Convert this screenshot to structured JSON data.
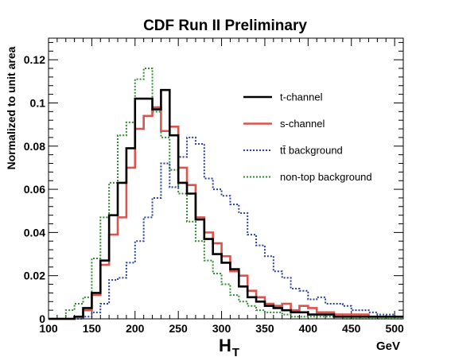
{
  "chart_data": {
    "type": "line",
    "style": "step-histogram",
    "title": "CDF Run II Preliminary",
    "xlabel": "H",
    "xlabel_subscript": "T",
    "xunit": "GeV",
    "ylabel": "Normalized to unit area",
    "xlim": [
      100,
      510
    ],
    "ylim": [
      0,
      0.13
    ],
    "xticks": [
      100,
      150,
      200,
      250,
      300,
      350,
      400,
      450,
      500
    ],
    "yticks": [
      0,
      0.02,
      0.04,
      0.06,
      0.08,
      0.1,
      0.12
    ],
    "ytick_labels": [
      "0",
      "0.02",
      "0.04",
      "0.06",
      "0.08",
      "0.1",
      "0.12"
    ],
    "bin_width": 10,
    "bin_edges_start": 100,
    "legend_position": "right",
    "series": [
      {
        "name": "t-channel",
        "color": "#000000",
        "dash": "solid",
        "values": [
          0,
          0,
          0,
          0.001,
          0.005,
          0.012,
          0.027,
          0.048,
          0.063,
          0.079,
          0.102,
          0.102,
          0.097,
          0.106,
          0.085,
          0.063,
          0.058,
          0.046,
          0.037,
          0.03,
          0.026,
          0.023,
          0.015,
          0.01,
          0.008,
          0.006,
          0.005,
          0.004,
          0.003,
          0.003,
          0.002,
          0.002,
          0.002,
          0.001,
          0.001,
          0.001,
          0.001,
          0.001,
          0.001,
          0.001,
          0.001
        ]
      },
      {
        "name": "s-channel",
        "color": "#d9534f",
        "dash": "solid",
        "values": [
          0,
          0,
          0,
          0.001,
          0.004,
          0.011,
          0.025,
          0.039,
          0.047,
          0.07,
          0.088,
          0.094,
          0.098,
          0.087,
          0.089,
          0.07,
          0.062,
          0.047,
          0.04,
          0.035,
          0.029,
          0.022,
          0.02,
          0.013,
          0.01,
          0.007,
          0.006,
          0.007,
          0.004,
          0.006,
          0.005,
          0.003,
          0.003,
          0.002,
          0.002,
          0.002,
          0.002,
          0.001,
          0.001,
          0.001,
          0.001
        ]
      },
      {
        "name": "tt̄ background",
        "color": "#2a3f9e",
        "dash": "dotted",
        "values": [
          0,
          0,
          0,
          0,
          0.001,
          0.003,
          0.007,
          0.018,
          0.019,
          0.026,
          0.036,
          0.047,
          0.056,
          0.072,
          0.061,
          0.075,
          0.084,
          0.081,
          0.065,
          0.06,
          0.057,
          0.053,
          0.049,
          0.039,
          0.034,
          0.029,
          0.022,
          0.019,
          0.014,
          0.013,
          0.009,
          0.01,
          0.007,
          0.007,
          0.006,
          0.004,
          0.004,
          0.003,
          0.002,
          0.002,
          0.001
        ]
      },
      {
        "name": "non-top background",
        "color": "#2e8b2e",
        "dash": "dotted",
        "values": [
          0,
          0,
          0.004,
          0.007,
          0.01,
          0.028,
          0.047,
          0.063,
          0.085,
          0.091,
          0.111,
          0.116,
          0.096,
          0.084,
          0.069,
          0.058,
          0.045,
          0.036,
          0.027,
          0.021,
          0.016,
          0.011,
          0.008,
          0.006,
          0.004,
          0.003,
          0.003,
          0.002,
          0.001,
          0.001,
          0.001,
          0.001,
          0.001,
          0.001,
          0,
          0,
          0,
          0,
          0,
          0,
          0
        ]
      }
    ]
  }
}
